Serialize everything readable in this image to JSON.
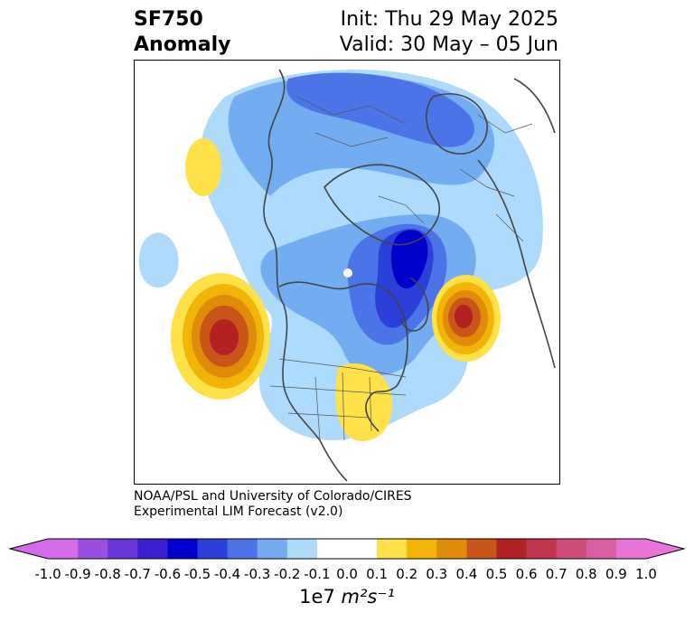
{
  "title": {
    "left_line1": "SF750",
    "left_line2": "Anomaly",
    "right_line1": "Init: Thu 29 May 2025",
    "right_line2": "Valid: 30 May – 05 Jun"
  },
  "credit": {
    "line1": "NOAA/PSL and University of Colorado/CIRES",
    "line2": "Experimental LIM Forecast (v2.0)"
  },
  "colorbar": {
    "ticks": [
      "-1.0",
      "-0.9",
      "-0.8",
      "-0.7",
      "-0.6",
      "-0.5",
      "-0.4",
      "-0.3",
      "-0.2",
      "-0.1",
      "0.0",
      "0.1",
      "0.2",
      "0.3",
      "0.4",
      "0.5",
      "0.6",
      "0.7",
      "0.8",
      "0.9",
      "1.0"
    ],
    "colors": [
      "#d46be8",
      "#9b4fe0",
      "#6a35d8",
      "#3b1fcf",
      "#0000cd",
      "#2b3fd9",
      "#4d74e6",
      "#74acf2",
      "#aedbfc",
      "#ffffff",
      "#ffffff",
      "#ffe14a",
      "#f2b507",
      "#e08c0b",
      "#c8551a",
      "#b22222",
      "#c2364d",
      "#cc4b78",
      "#d85ea3",
      "#e874d8"
    ],
    "extend_low_color": "#d46be8",
    "extend_high_color": "#e874d8",
    "units_prefix": "1e7 ",
    "units_expr": "m²s⁻¹"
  }
}
